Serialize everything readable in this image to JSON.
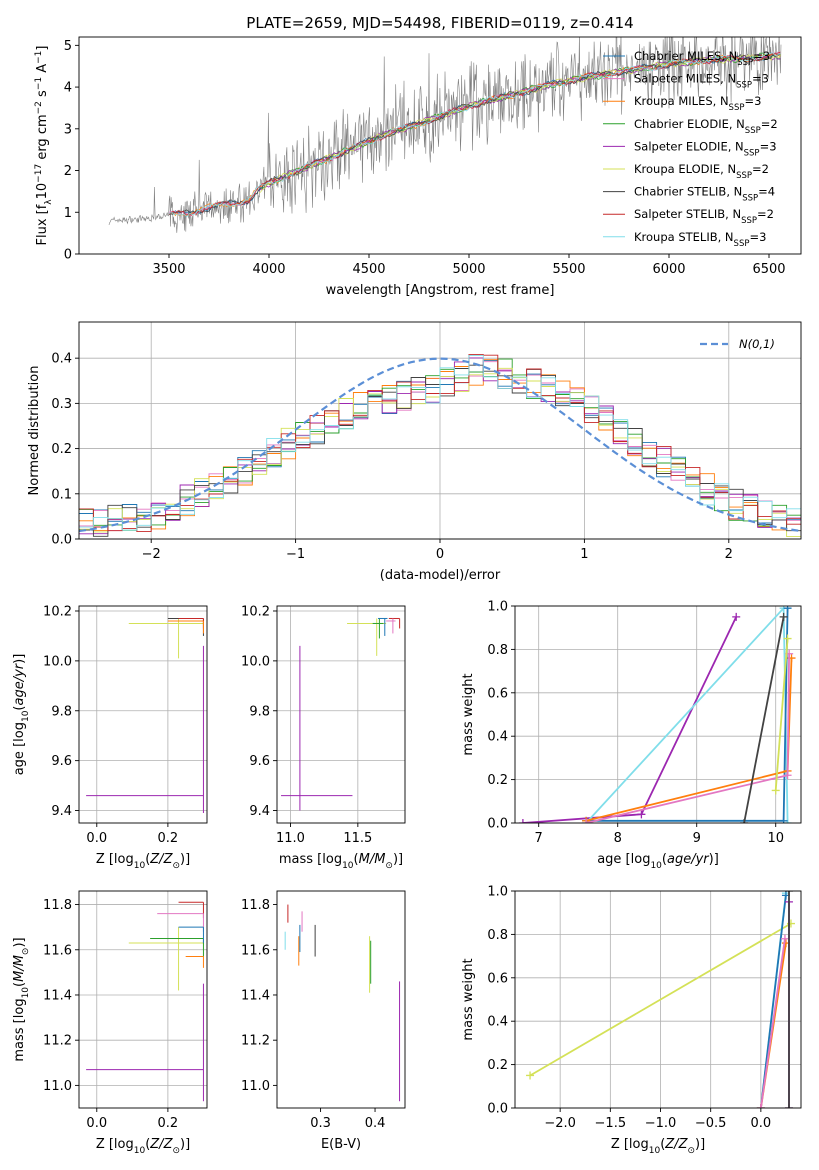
{
  "figure_title": "PLATE=2659, MJD=54498, FIBERID=0119, z=0.414",
  "colors": {
    "data": "#808080",
    "chabrier_miles": "#1f77b4",
    "salpeter_miles": "#e377c2",
    "kroupa_miles": "#ff7f0e",
    "chabrier_elodie": "#2ca02c",
    "salpeter_elodie": "#9c27b0",
    "kroupa_elodie": "#d4e157",
    "chabrier_stelib": "#424242",
    "salpeter_stelib": "#c62828",
    "kroupa_stelib": "#80deea",
    "normal_curve": "#5b8fd6"
  },
  "chart_data": [
    {
      "id": "spectrum",
      "type": "line",
      "title": "PLATE=2659, MJD=54498, FIBERID=0119, z=0.414",
      "xlabel": "wavelength [Angstrom, rest frame]",
      "ylabel": "Flux [f_λ10^-17 erg cm^-2 s^-1 A^-1]",
      "xlim": [
        3050,
        6660
      ],
      "ylim": [
        0,
        5.2
      ],
      "xticks": [
        3500,
        4000,
        4500,
        5000,
        5500,
        6000,
        6500
      ],
      "yticks": [
        0,
        1,
        2,
        3,
        4,
        5
      ],
      "grid": false,
      "legend_position": "top-right",
      "continuum": [
        [
          3200,
          0.8
        ],
        [
          3400,
          0.85
        ],
        [
          3600,
          1.0
        ],
        [
          3800,
          1.2
        ],
        [
          3900,
          1.3
        ],
        [
          3950,
          1.55
        ],
        [
          4000,
          1.7
        ],
        [
          4200,
          2.1
        ],
        [
          4400,
          2.5
        ],
        [
          4600,
          2.9
        ],
        [
          4800,
          3.2
        ],
        [
          5000,
          3.55
        ],
        [
          5200,
          3.8
        ],
        [
          5400,
          4.05
        ],
        [
          5600,
          4.25
        ],
        [
          5800,
          4.4
        ],
        [
          6000,
          4.55
        ],
        [
          6200,
          4.65
        ],
        [
          6400,
          4.7
        ],
        [
          6550,
          4.75
        ]
      ],
      "series": [
        {
          "name": "Chabrier MILES, N_SSP=3",
          "legend": [
            "Chabrier MILES, N",
            "SSP",
            "=3"
          ]
        },
        {
          "name": "Salpeter MILES, N_SSP=3",
          "legend": [
            "Salpeter MILES, N",
            "SSP",
            "=3"
          ]
        },
        {
          "name": "Kroupa MILES, N_SSP=3",
          "legend": [
            "Kroupa MILES, N",
            "SSP",
            "=3"
          ]
        },
        {
          "name": "Chabrier ELODIE, N_SSP=2",
          "legend": [
            "Chabrier ELODIE, N",
            "SSP",
            "=2"
          ]
        },
        {
          "name": "Salpeter ELODIE, N_SSP=3",
          "legend": [
            "Salpeter ELODIE, N",
            "SSP",
            "=3"
          ]
        },
        {
          "name": "Kroupa ELODIE, N_SSP=2",
          "legend": [
            "Kroupa ELODIE, N",
            "SSP",
            "=2"
          ]
        },
        {
          "name": "Chabrier STELIB, N_SSP=4",
          "legend": [
            "Chabrier STELIB, N",
            "SSP",
            "=4"
          ]
        },
        {
          "name": "Salpeter STELIB, N_SSP=2",
          "legend": [
            "Salpeter STELIB, N",
            "SSP",
            "=2"
          ]
        },
        {
          "name": "Kroupa STELIB, N_SSP=3",
          "legend": [
            "Kroupa STELIB, N",
            "SSP",
            "=3"
          ]
        }
      ]
    },
    {
      "id": "residuals",
      "type": "line",
      "xlabel": "(data-model)/error",
      "ylabel": "Normed distribution",
      "xlim": [
        -2.5,
        2.5
      ],
      "ylim": [
        0,
        0.48
      ],
      "xticks": [
        -2,
        -1,
        0,
        1,
        2
      ],
      "yticks": [
        0.0,
        0.1,
        0.2,
        0.3,
        0.4
      ],
      "grid": true,
      "legend_position": "top-right",
      "legend_label": "N(0,1)",
      "bin_width": 0.1,
      "histogram_envelope": [
        [
          -2.5,
          0.03
        ],
        [
          -2.0,
          0.05
        ],
        [
          -1.5,
          0.12
        ],
        [
          -1.0,
          0.22
        ],
        [
          -0.5,
          0.3
        ],
        [
          0.0,
          0.34
        ],
        [
          0.3,
          0.38
        ],
        [
          0.5,
          0.36
        ],
        [
          1.0,
          0.3
        ],
        [
          1.5,
          0.18
        ],
        [
          2.0,
          0.08
        ],
        [
          2.5,
          0.03
        ]
      ]
    },
    {
      "id": "z_vs_age",
      "type": "scatter",
      "xlabel": "Z [log10(Z/Z⊙)]",
      "ylabel": "age [log10(age/yr)]",
      "xlim": [
        -0.05,
        0.31
      ],
      "ylim": [
        9.35,
        10.22
      ],
      "xticks": [
        0.0,
        0.2
      ],
      "yticks": [
        9.4,
        9.6,
        9.8,
        10.0,
        10.2
      ],
      "grid": true,
      "points": [
        {
          "series": "Salpeter ELODIE",
          "x": 0.3,
          "y": 9.46,
          "xerr": [
            0.33,
            0.0
          ],
          "yerr": [
            0.07,
            0.6
          ]
        },
        {
          "series": "Kroupa ELODIE",
          "x": 0.23,
          "y": 10.15,
          "xerr": [
            0.14,
            0.07
          ],
          "yerr": [
            0.14,
            0.02
          ]
        },
        {
          "series": "Chabrier STELIB",
          "x": 0.3,
          "y": 10.17,
          "xerr": [
            0.1,
            0.0
          ],
          "yerr": [
            0.07,
            0.0
          ]
        },
        {
          "series": "Salpeter STELIB",
          "x": 0.3,
          "y": 10.17,
          "xerr": [
            0.07,
            0.0
          ],
          "yerr": [
            0.04,
            0.0
          ]
        },
        {
          "series": "Kroupa MILES",
          "x": 0.3,
          "y": 10.16,
          "xerr": [
            0.1,
            0.0
          ],
          "yerr": [
            0.05,
            0.0
          ]
        }
      ]
    },
    {
      "id": "mass_vs_age",
      "type": "scatter",
      "xlabel": "mass [log10(M/M⊙)]",
      "ylabel": "",
      "xlim": [
        10.9,
        11.85
      ],
      "ylim": [
        9.35,
        10.22
      ],
      "xticks": [
        11.0,
        11.5
      ],
      "yticks": [
        9.4,
        9.6,
        9.8,
        10.0,
        10.2
      ],
      "grid": true,
      "points": [
        {
          "series": "Salpeter ELODIE",
          "x": 11.07,
          "y": 9.46,
          "xerr": [
            0.14,
            0.39
          ],
          "yerr": [
            0.06,
            0.6
          ]
        },
        {
          "series": "Kroupa ELODIE",
          "x": 11.64,
          "y": 10.15,
          "xerr": [
            0.22,
            0.07
          ],
          "yerr": [
            0.13,
            0.02
          ]
        },
        {
          "series": "Chabrier ELODIE",
          "x": 11.66,
          "y": 10.15,
          "xerr": [
            0.05,
            0.03
          ],
          "yerr": [
            0.06,
            0.02
          ]
        },
        {
          "series": "Salpeter STELIB",
          "x": 11.81,
          "y": 10.17,
          "xerr": [
            0.08,
            0.0
          ],
          "yerr": [
            0.04,
            0.0
          ]
        },
        {
          "series": "Salpeter MILES",
          "x": 11.76,
          "y": 10.16,
          "xerr": [
            0.05,
            0.02
          ],
          "yerr": [
            0.05,
            0.01
          ]
        },
        {
          "series": "Chabrier MILES",
          "x": 11.7,
          "y": 10.17,
          "xerr": [
            0.05,
            0.02
          ],
          "yerr": [
            0.07,
            0.0
          ]
        }
      ]
    },
    {
      "id": "age_vs_weight",
      "type": "line",
      "xlabel": "age [log10(age/yr)]",
      "ylabel": "mass weight",
      "xlim": [
        6.7,
        10.32
      ],
      "ylim": [
        0,
        1.0
      ],
      "xticks": [
        7,
        8,
        9,
        10
      ],
      "yticks": [
        0.0,
        0.2,
        0.4,
        0.6,
        0.8,
        1.0
      ],
      "grid": true,
      "lines": [
        {
          "series": "Salpeter ELODIE",
          "points": [
            [
              6.8,
              0.0
            ],
            [
              8.3,
              0.04
            ],
            [
              9.5,
              0.95
            ]
          ]
        },
        {
          "series": "Kroupa STELIB",
          "points": [
            [
              7.6,
              0.0
            ],
            [
              10.1,
              0.99
            ],
            [
              10.15,
              0.0
            ]
          ]
        },
        {
          "series": "Chabrier MILES",
          "points": [
            [
              7.6,
              0.01
            ],
            [
              10.1,
              0.01
            ],
            [
              10.15,
              0.99
            ]
          ]
        },
        {
          "series": "Kroupa MILES",
          "points": [
            [
              7.6,
              0.01
            ],
            [
              10.15,
              0.24
            ],
            [
              10.2,
              0.76
            ]
          ]
        },
        {
          "series": "Salpeter MILES",
          "points": [
            [
              7.6,
              0.0
            ],
            [
              10.15,
              0.22
            ],
            [
              10.17,
              0.78
            ]
          ]
        },
        {
          "series": "Chabrier STELIB",
          "points": [
            [
              9.6,
              0.0
            ],
            [
              10.1,
              0.95
            ]
          ]
        },
        {
          "series": "Kroupa ELODIE",
          "points": [
            [
              10.0,
              0.15
            ],
            [
              10.15,
              0.85
            ]
          ]
        }
      ]
    },
    {
      "id": "z_vs_mass",
      "type": "scatter",
      "xlabel": "Z [log10(Z/Z⊙)]",
      "ylabel": "mass [log10(M/M⊙)]",
      "xlim": [
        -0.05,
        0.31
      ],
      "ylim": [
        10.9,
        11.86
      ],
      "xticks": [
        0.0,
        0.2
      ],
      "yticks": [
        11.0,
        11.2,
        11.4,
        11.6,
        11.8
      ],
      "grid": true,
      "points": [
        {
          "series": "Salpeter ELODIE",
          "x": 0.3,
          "y": 11.07,
          "xerr": [
            0.33,
            0.0
          ],
          "yerr": [
            0.14,
            0.38
          ]
        },
        {
          "series": "Kroupa ELODIE",
          "x": 0.23,
          "y": 11.63,
          "xerr": [
            0.14,
            0.07
          ],
          "yerr": [
            0.21,
            0.07
          ]
        },
        {
          "series": "Salpeter STELIB",
          "x": 0.3,
          "y": 11.81,
          "xerr": [
            0.07,
            0.0
          ],
          "yerr": [
            0.07,
            0.0
          ]
        },
        {
          "series": "Salpeter MILES",
          "x": 0.3,
          "y": 11.76,
          "xerr": [
            0.13,
            0.0
          ],
          "yerr": [
            0.08,
            0.0
          ]
        },
        {
          "series": "Chabrier ELODIE",
          "x": 0.3,
          "y": 11.65,
          "xerr": [
            0.15,
            0.0
          ],
          "yerr": [
            0.08,
            0.0
          ]
        },
        {
          "series": "Chabrier MILES",
          "x": 0.3,
          "y": 11.7,
          "xerr": [
            0.07,
            0.0
          ],
          "yerr": [
            0.07,
            0.0
          ]
        },
        {
          "series": "Kroupa MILES",
          "x": 0.3,
          "y": 11.57,
          "xerr": [
            0.05,
            0.0
          ],
          "yerr": [
            0.05,
            0.0
          ]
        }
      ]
    },
    {
      "id": "ebv_vs_mass",
      "type": "scatter",
      "xlabel": "E(B-V)",
      "ylabel": "",
      "xlim": [
        0.22,
        0.455
      ],
      "ylim": [
        10.9,
        11.86
      ],
      "xticks": [
        0.3,
        0.4
      ],
      "yticks": [
        11.0,
        11.2,
        11.4,
        11.6,
        11.8
      ],
      "grid": false,
      "points": [
        {
          "series": "Salpeter STELIB",
          "x": 0.24,
          "y": 11.76,
          "yerr": [
            0.04,
            0.04
          ]
        },
        {
          "series": "Kroupa STELIB",
          "x": 0.235,
          "y": 11.64,
          "yerr": [
            0.04,
            0.04
          ]
        },
        {
          "series": "Kroupa MILES",
          "x": 0.26,
          "y": 11.6,
          "yerr": [
            0.07,
            0.06
          ]
        },
        {
          "series": "Chabrier MILES",
          "x": 0.262,
          "y": 11.65,
          "yerr": [
            0.06,
            0.06
          ]
        },
        {
          "series": "Salpeter MILES",
          "x": 0.266,
          "y": 11.73,
          "yerr": [
            0.05,
            0.04
          ]
        },
        {
          "series": "Chabrier STELIB",
          "x": 0.29,
          "y": 11.64,
          "yerr": [
            0.07,
            0.07
          ]
        },
        {
          "series": "Kroupa ELODIE",
          "x": 0.39,
          "y": 11.5,
          "yerr": [
            0.09,
            0.16
          ]
        },
        {
          "series": "Chabrier ELODIE",
          "x": 0.392,
          "y": 11.55,
          "yerr": [
            0.1,
            0.09
          ]
        },
        {
          "series": "Salpeter ELODIE",
          "x": 0.445,
          "y": 11.2,
          "yerr": [
            0.27,
            0.26
          ]
        }
      ]
    },
    {
      "id": "z_vs_weight",
      "type": "line",
      "xlabel": "Z [log10(Z/Z⊙)]",
      "ylabel": "mass weight",
      "xlim": [
        -2.45,
        0.4
      ],
      "ylim": [
        0,
        1.0
      ],
      "xticks": [
        -2.0,
        -1.5,
        -1.0,
        -0.5,
        0.0
      ],
      "yticks": [
        0.0,
        0.2,
        0.4,
        0.6,
        0.8,
        1.0
      ],
      "grid": true,
      "lines": [
        {
          "series": "Kroupa ELODIE",
          "points": [
            [
              -2.3,
              0.15
            ],
            [
              0.3,
              0.85
            ]
          ]
        },
        {
          "series": "Kroupa STELIB",
          "points": [
            [
              0.0,
              0.0
            ],
            [
              0.25,
              0.99
            ]
          ]
        },
        {
          "series": "Chabrier MILES",
          "points": [
            [
              0.0,
              0.0
            ],
            [
              0.25,
              0.98
            ]
          ]
        },
        {
          "series": "Kroupa MILES",
          "points": [
            [
              0.0,
              0.0
            ],
            [
              0.25,
              0.76
            ]
          ]
        },
        {
          "series": "Salpeter MILES",
          "points": [
            [
              0.0,
              0.0
            ],
            [
              0.24,
              0.78
            ]
          ]
        },
        {
          "series": "Salpeter ELODIE",
          "points": [
            [
              0.28,
              0.0
            ],
            [
              0.28,
              0.95
            ]
          ]
        },
        {
          "series": "Chabrier STELIB",
          "points": [
            [
              0.28,
              0.0
            ],
            [
              0.28,
              1.0
            ]
          ]
        }
      ]
    }
  ]
}
